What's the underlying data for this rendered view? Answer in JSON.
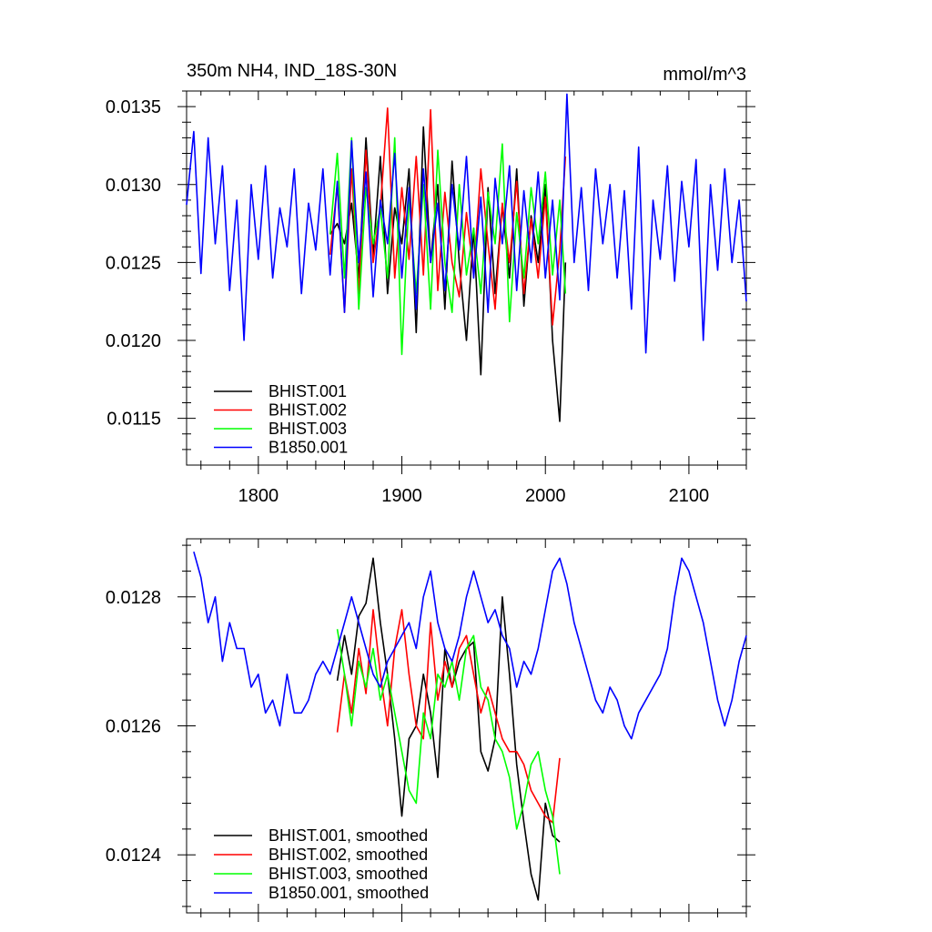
{
  "chart_data": [
    {
      "type": "line",
      "title": "350m NH4, IND_18S-30N",
      "units": "mmol/m^3",
      "xlabel": "",
      "ylabel": "",
      "xlim": [
        1750,
        2140
      ],
      "ylim": [
        0.0112,
        0.0136
      ],
      "xticks": [
        1800,
        1900,
        2000,
        2100
      ],
      "xtick_labels": [
        "1800",
        "1900",
        "2000",
        "2100"
      ],
      "yticks": [
        0.0115,
        0.012,
        0.0125,
        0.013,
        0.0135
      ],
      "ytick_labels": [
        "0.0115",
        "0.0120",
        "0.0125",
        "0.0130",
        "0.0135"
      ],
      "grid": false,
      "legend_position": "bottom-left",
      "series": [
        {
          "name": "BHIST.001",
          "color": "#000000",
          "x": [
            1850,
            1855,
            1860,
            1865,
            1870,
            1875,
            1880,
            1885,
            1890,
            1895,
            1900,
            1905,
            1910,
            1915,
            1920,
            1925,
            1930,
            1935,
            1940,
            1945,
            1950,
            1955,
            1960,
            1965,
            1970,
            1975,
            1980,
            1985,
            1990,
            1995,
            2000,
            2005,
            2010,
            2014
          ],
          "y": [
            0.01268,
            0.01275,
            0.01262,
            0.01288,
            0.0124,
            0.0133,
            0.01255,
            0.01318,
            0.0123,
            0.01285,
            0.01262,
            0.0131,
            0.01205,
            0.01337,
            0.0125,
            0.013,
            0.0122,
            0.01315,
            0.0125,
            0.012,
            0.01272,
            0.01178,
            0.01298,
            0.0123,
            0.01287,
            0.0124,
            0.0131,
            0.01222,
            0.0128,
            0.0125,
            0.013,
            0.012,
            0.01148,
            0.0125
          ]
        },
        {
          "name": "BHIST.002",
          "color": "#ff0000",
          "x": [
            1850,
            1855,
            1860,
            1865,
            1870,
            1875,
            1880,
            1885,
            1890,
            1895,
            1900,
            1905,
            1910,
            1915,
            1920,
            1925,
            1930,
            1935,
            1940,
            1945,
            1950,
            1955,
            1960,
            1965,
            1970,
            1975,
            1980,
            1985,
            1990,
            1995,
            2000,
            2005,
            2010,
            2014
          ],
          "y": [
            0.01255,
            0.013,
            0.01218,
            0.0131,
            0.0123,
            0.01322,
            0.0125,
            0.01285,
            0.01349,
            0.0124,
            0.01298,
            0.01252,
            0.01318,
            0.01242,
            0.01348,
            0.01232,
            0.01295,
            0.0125,
            0.01228,
            0.01282,
            0.01242,
            0.0131,
            0.01262,
            0.0122,
            0.01288,
            0.0125,
            0.01302,
            0.0123,
            0.01278,
            0.0124,
            0.01292,
            0.0121,
            0.01258,
            0.01318
          ]
        },
        {
          "name": "BHIST.003",
          "color": "#00ff00",
          "x": [
            1850,
            1855,
            1860,
            1865,
            1870,
            1875,
            1880,
            1885,
            1890,
            1895,
            1900,
            1905,
            1910,
            1915,
            1920,
            1925,
            1930,
            1935,
            1940,
            1945,
            1950,
            1955,
            1960,
            1965,
            1970,
            1975,
            1980,
            1985,
            1990,
            1995,
            2000,
            2005,
            2010,
            2014
          ],
          "y": [
            0.01268,
            0.0132,
            0.0124,
            0.0133,
            0.0122,
            0.01298,
            0.01262,
            0.01285,
            0.0124,
            0.0133,
            0.01191,
            0.01292,
            0.0123,
            0.013,
            0.0122,
            0.01322,
            0.0125,
            0.01218,
            0.013,
            0.01242,
            0.01272,
            0.0123,
            0.01295,
            0.01262,
            0.01326,
            0.01212,
            0.01282,
            0.0124,
            0.01298,
            0.01262,
            0.01308,
            0.01242,
            0.0129,
            0.0123
          ]
        },
        {
          "name": "B1850.001",
          "color": "#0000ff",
          "x": [
            1750,
            1755,
            1760,
            1765,
            1770,
            1775,
            1780,
            1785,
            1790,
            1795,
            1800,
            1805,
            1810,
            1815,
            1820,
            1825,
            1830,
            1835,
            1840,
            1845,
            1850,
            1855,
            1860,
            1865,
            1870,
            1875,
            1880,
            1885,
            1890,
            1895,
            1900,
            1905,
            1910,
            1915,
            1920,
            1925,
            1930,
            1935,
            1940,
            1945,
            1950,
            1955,
            1960,
            1965,
            1970,
            1975,
            1980,
            1985,
            1990,
            1995,
            2000,
            2005,
            2010,
            2015,
            2020,
            2025,
            2030,
            2035,
            2040,
            2045,
            2050,
            2055,
            2060,
            2065,
            2070,
            2075,
            2080,
            2085,
            2090,
            2095,
            2100,
            2105,
            2110,
            2115,
            2120,
            2125,
            2130,
            2135,
            2140
          ],
          "y": [
            0.01287,
            0.01334,
            0.01243,
            0.0133,
            0.01262,
            0.01312,
            0.01232,
            0.0129,
            0.012,
            0.013,
            0.01252,
            0.01312,
            0.0124,
            0.01285,
            0.0126,
            0.0131,
            0.0123,
            0.01288,
            0.01258,
            0.0131,
            0.01242,
            0.01302,
            0.01218,
            0.01328,
            0.0125,
            0.01308,
            0.01228,
            0.0129,
            0.01262,
            0.0132,
            0.0124,
            0.01298,
            0.0122,
            0.0131,
            0.0125,
            0.01288,
            0.01232,
            0.013,
            0.01258,
            0.01318,
            0.0124,
            0.01292,
            0.01218,
            0.01304,
            0.01262,
            0.01312,
            0.01232,
            0.01296,
            0.0125,
            0.01308,
            0.0124,
            0.0129,
            0.01226,
            0.01358,
            0.0125,
            0.01298,
            0.01232,
            0.0131,
            0.01262,
            0.013,
            0.0124,
            0.01296,
            0.0122,
            0.01324,
            0.01192,
            0.0129,
            0.01252,
            0.01312,
            0.01238,
            0.01302,
            0.0126,
            0.01316,
            0.012,
            0.013,
            0.01245,
            0.0131,
            0.0125,
            0.0129,
            0.01225
          ]
        }
      ]
    },
    {
      "type": "line",
      "title": "",
      "xlabel": "",
      "ylabel": "",
      "xlim": [
        1750,
        2140
      ],
      "ylim": [
        0.01231,
        0.01289
      ],
      "xticks": [
        1800,
        1900,
        2000,
        2100
      ],
      "xtick_labels": [
        "",
        "",
        "",
        ""
      ],
      "yticks": [
        0.0124,
        0.0126,
        0.0128
      ],
      "ytick_labels": [
        "0.0124",
        "0.0126",
        "0.0128"
      ],
      "grid": false,
      "legend_position": "bottom-left",
      "series": [
        {
          "name": "BHIST.001, smoothed",
          "color": "#000000",
          "x": [
            1855,
            1860,
            1865,
            1870,
            1875,
            1880,
            1885,
            1890,
            1895,
            1900,
            1905,
            1910,
            1915,
            1920,
            1925,
            1930,
            1935,
            1940,
            1945,
            1950,
            1955,
            1960,
            1965,
            1970,
            1975,
            1980,
            1985,
            1990,
            1995,
            2000,
            2005,
            2010
          ],
          "y": [
            0.01267,
            0.01274,
            0.01268,
            0.01277,
            0.01279,
            0.01286,
            0.01276,
            0.01268,
            0.01258,
            0.01246,
            0.01258,
            0.0126,
            0.01268,
            0.01262,
            0.01252,
            0.01272,
            0.01266,
            0.0127,
            0.01272,
            0.01273,
            0.01256,
            0.01253,
            0.01258,
            0.0128,
            0.01268,
            0.01254,
            0.01245,
            0.01237,
            0.01233,
            0.01248,
            0.01243,
            0.01242
          ]
        },
        {
          "name": "BHIST.002, smoothed",
          "color": "#ff0000",
          "x": [
            1855,
            1860,
            1865,
            1870,
            1875,
            1880,
            1885,
            1890,
            1895,
            1900,
            1905,
            1910,
            1915,
            1920,
            1925,
            1930,
            1935,
            1940,
            1945,
            1950,
            1955,
            1960,
            1965,
            1970,
            1975,
            1980,
            1985,
            1990,
            1995,
            2000,
            2005,
            2010
          ],
          "y": [
            0.01259,
            0.01268,
            0.01262,
            0.01272,
            0.01265,
            0.01278,
            0.01268,
            0.0126,
            0.01272,
            0.01278,
            0.01268,
            0.0126,
            0.01258,
            0.01276,
            0.01264,
            0.0127,
            0.01266,
            0.01272,
            0.01274,
            0.01268,
            0.01262,
            0.01266,
            0.01262,
            0.01258,
            0.01256,
            0.01256,
            0.01254,
            0.0125,
            0.01248,
            0.01246,
            0.01245,
            0.01255
          ]
        },
        {
          "name": "BHIST.003, smoothed",
          "color": "#00ff00",
          "x": [
            1855,
            1860,
            1865,
            1870,
            1875,
            1880,
            1885,
            1890,
            1895,
            1900,
            1905,
            1910,
            1915,
            1920,
            1925,
            1930,
            1935,
            1940,
            1945,
            1950,
            1955,
            1960,
            1965,
            1970,
            1975,
            1980,
            1985,
            1990,
            1995,
            2000,
            2005,
            2010
          ],
          "y": [
            0.01275,
            0.01268,
            0.0126,
            0.0127,
            0.01266,
            0.01272,
            0.01264,
            0.01268,
            0.01262,
            0.01256,
            0.0125,
            0.01248,
            0.01262,
            0.01258,
            0.01268,
            0.01266,
            0.0127,
            0.01264,
            0.01272,
            0.01274,
            0.01266,
            0.01264,
            0.01258,
            0.01256,
            0.01252,
            0.01244,
            0.01248,
            0.01254,
            0.01256,
            0.0125,
            0.01246,
            0.01237
          ]
        },
        {
          "name": "B1850.001, smoothed",
          "color": "#0000ff",
          "x": [
            1755,
            1760,
            1765,
            1770,
            1775,
            1780,
            1785,
            1790,
            1795,
            1800,
            1805,
            1810,
            1815,
            1820,
            1825,
            1830,
            1835,
            1840,
            1845,
            1850,
            1855,
            1860,
            1865,
            1870,
            1875,
            1880,
            1885,
            1890,
            1895,
            1900,
            1905,
            1910,
            1915,
            1920,
            1925,
            1930,
            1935,
            1940,
            1945,
            1950,
            1955,
            1960,
            1965,
            1970,
            1975,
            1980,
            1985,
            1990,
            1995,
            2000,
            2005,
            2010,
            2015,
            2020,
            2025,
            2030,
            2035,
            2040,
            2045,
            2050,
            2055,
            2060,
            2065,
            2070,
            2075,
            2080,
            2085,
            2090,
            2095,
            2100,
            2105,
            2110,
            2115,
            2120,
            2125,
            2130,
            2135,
            2140
          ],
          "y": [
            0.01287,
            0.01283,
            0.01276,
            0.0128,
            0.0127,
            0.01276,
            0.01272,
            0.01272,
            0.01266,
            0.01268,
            0.01262,
            0.01264,
            0.0126,
            0.01268,
            0.01262,
            0.01262,
            0.01264,
            0.01268,
            0.0127,
            0.01268,
            0.01272,
            0.01276,
            0.0128,
            0.01276,
            0.01272,
            0.01268,
            0.01266,
            0.0127,
            0.01272,
            0.01274,
            0.01276,
            0.01272,
            0.0128,
            0.01284,
            0.01276,
            0.01272,
            0.0127,
            0.01274,
            0.0128,
            0.01284,
            0.0128,
            0.01276,
            0.01278,
            0.01274,
            0.01272,
            0.01266,
            0.0127,
            0.01268,
            0.01272,
            0.01278,
            0.01284,
            0.01286,
            0.01282,
            0.01276,
            0.01272,
            0.01268,
            0.01264,
            0.01262,
            0.01266,
            0.01264,
            0.0126,
            0.01258,
            0.01262,
            0.01264,
            0.01266,
            0.01268,
            0.01272,
            0.0128,
            0.01286,
            0.01284,
            0.0128,
            0.01276,
            0.0127,
            0.01264,
            0.0126,
            0.01264,
            0.0127,
            0.01274
          ]
        }
      ]
    }
  ]
}
